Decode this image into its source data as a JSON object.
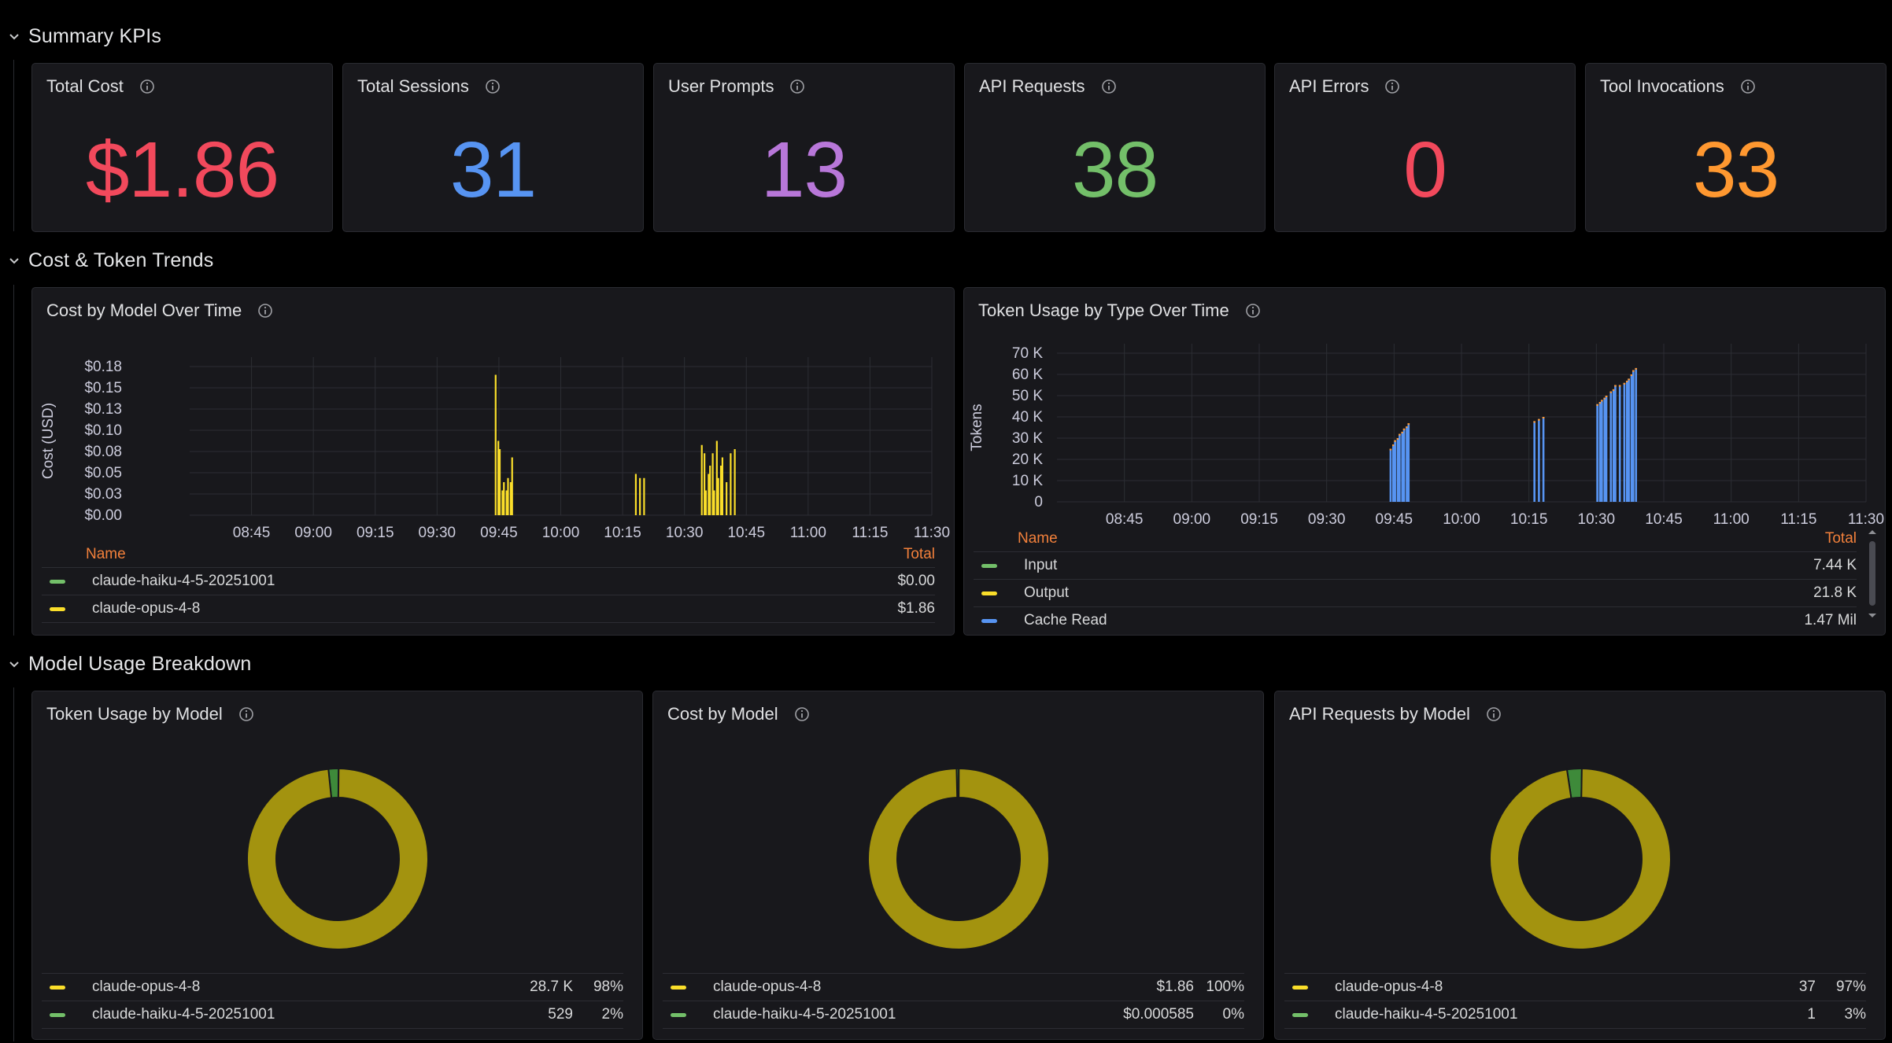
{
  "colors": {
    "red": "#f2495c",
    "blue": "#5794f2",
    "purple": "#b877d9",
    "green": "#73bf69",
    "orange": "#ff9830",
    "yellow": "#fade2a",
    "donut_main": "#a3930f",
    "donut_minor": "#3e8a3a"
  },
  "rows": [
    {
      "title": "Summary KPIs",
      "icon": "chevron-down-icon"
    },
    {
      "title": "Cost & Token Trends",
      "icon": "chevron-down-icon"
    },
    {
      "title": "Model Usage Breakdown",
      "icon": "chevron-down-icon"
    }
  ],
  "kpis": [
    {
      "title": "Total Cost",
      "value": "$1.86",
      "color": "#f2495c"
    },
    {
      "title": "Total Sessions",
      "value": "31",
      "color": "#5794f2"
    },
    {
      "title": "User Prompts",
      "value": "13",
      "color": "#b877d9"
    },
    {
      "title": "API Requests",
      "value": "38",
      "color": "#73bf69"
    },
    {
      "title": "API Errors",
      "value": "0",
      "color": "#f2495c"
    },
    {
      "title": "Tool Invocations",
      "value": "33",
      "color": "#ff9830"
    }
  ],
  "cost_chart": {
    "title": "Cost by Model Over Time",
    "legend_name_header": "Name",
    "legend_total_header": "Total",
    "legend": [
      {
        "name": "claude-haiku-4-5-20251001",
        "total": "$0.00",
        "color": "#73bf69"
      },
      {
        "name": "claude-opus-4-8",
        "total": "$1.86",
        "color": "#fade2a"
      }
    ]
  },
  "token_chart": {
    "title": "Token Usage by Type Over Time",
    "legend_name_header": "Name",
    "legend_total_header": "Total",
    "legend": [
      {
        "name": "Input",
        "total": "7.44 K",
        "color": "#73bf69"
      },
      {
        "name": "Output",
        "total": "21.8 K",
        "color": "#fade2a"
      },
      {
        "name": "Cache Read",
        "total": "1.47 Mil",
        "color": "#5794f2"
      }
    ]
  },
  "chart_data": [
    {
      "type": "bar",
      "title": "Cost by Model Over Time",
      "ylabel": "Cost (USD)",
      "xlabel": "",
      "x_ticks": [
        "08:45",
        "09:00",
        "09:15",
        "09:30",
        "09:45",
        "10:00",
        "10:15",
        "10:30",
        "10:45",
        "11:00",
        "11:15",
        "11:30"
      ],
      "y_ticks": [
        "$0.00",
        "$0.03",
        "$0.05",
        "$0.08",
        "$0.10",
        "$0.13",
        "$0.15",
        "$0.18"
      ],
      "ylim": [
        0,
        0.18
      ],
      "grid": true,
      "series": [
        {
          "name": "claude-opus-4-8",
          "color": "#fade2a",
          "x": [
            "09:44",
            "09:44",
            "09:45",
            "09:45",
            "09:46",
            "09:46",
            "09:47",
            "09:47",
            "09:48",
            "10:18",
            "10:19",
            "10:20",
            "10:34",
            "10:34",
            "10:35",
            "10:35",
            "10:36",
            "10:36",
            "10:37",
            "10:37",
            "10:38",
            "10:38",
            "10:39",
            "10:40",
            "10:41",
            "10:42"
          ],
          "values": [
            0.17,
            0.09,
            0.08,
            0.03,
            0.04,
            0.03,
            0.045,
            0.04,
            0.07,
            0.05,
            0.045,
            0.045,
            0.085,
            0.075,
            0.03,
            0.05,
            0.06,
            0.075,
            0.03,
            0.09,
            0.045,
            0.06,
            0.07,
            0.04,
            0.075,
            0.08
          ]
        }
      ]
    },
    {
      "type": "bar",
      "title": "Token Usage by Type Over Time",
      "ylabel": "Tokens",
      "xlabel": "",
      "x_ticks": [
        "08:45",
        "09:00",
        "09:15",
        "09:30",
        "09:45",
        "10:00",
        "10:15",
        "10:30",
        "10:45",
        "11:00",
        "11:15",
        "11:30"
      ],
      "y_ticks": [
        "0",
        "10 K",
        "20 K",
        "30 K",
        "40 K",
        "50 K",
        "60 K",
        "70 K"
      ],
      "ylim": [
        0,
        70000
      ],
      "grid": true,
      "series": [
        {
          "name": "Cache Read",
          "color": "#5794f2",
          "x": [
            "09:44",
            "09:44",
            "09:45",
            "09:45",
            "09:46",
            "09:46",
            "09:47",
            "09:47",
            "09:48",
            "10:16",
            "10:17",
            "10:18",
            "10:30",
            "10:30",
            "10:31",
            "10:31",
            "10:32",
            "10:33",
            "10:33",
            "10:34",
            "10:35",
            "10:36",
            "10:36",
            "10:37",
            "10:37",
            "10:38",
            "10:38"
          ],
          "values": [
            25000,
            27000,
            29000,
            30000,
            32000,
            33000,
            34500,
            35500,
            37000,
            38000,
            39000,
            40000,
            46000,
            47000,
            48000,
            49000,
            50000,
            52000,
            53000,
            55000,
            55000,
            56000,
            57000,
            58000,
            60000,
            62000,
            63000
          ]
        }
      ]
    },
    {
      "type": "pie",
      "title": "Token Usage by Model",
      "categories": [
        "claude-opus-4-8",
        "claude-haiku-4-5-20251001"
      ],
      "values": [
        28700,
        529
      ],
      "display_values": [
        "28.7 K",
        "529"
      ],
      "percents": [
        "98%",
        "2%"
      ],
      "colors": [
        "#fade2a",
        "#73bf69"
      ]
    },
    {
      "type": "pie",
      "title": "Cost by Model",
      "categories": [
        "claude-opus-4-8",
        "claude-haiku-4-5-20251001"
      ],
      "values": [
        1.86,
        0.000585
      ],
      "display_values": [
        "$1.86",
        "$0.000585"
      ],
      "percents": [
        "100%",
        "0%"
      ],
      "colors": [
        "#fade2a",
        "#73bf69"
      ]
    },
    {
      "type": "pie",
      "title": "API Requests by Model",
      "categories": [
        "claude-opus-4-8",
        "claude-haiku-4-5-20251001"
      ],
      "values": [
        37,
        1
      ],
      "display_values": [
        "37",
        "1"
      ],
      "percents": [
        "97%",
        "3%"
      ],
      "colors": [
        "#fade2a",
        "#73bf69"
      ]
    }
  ]
}
